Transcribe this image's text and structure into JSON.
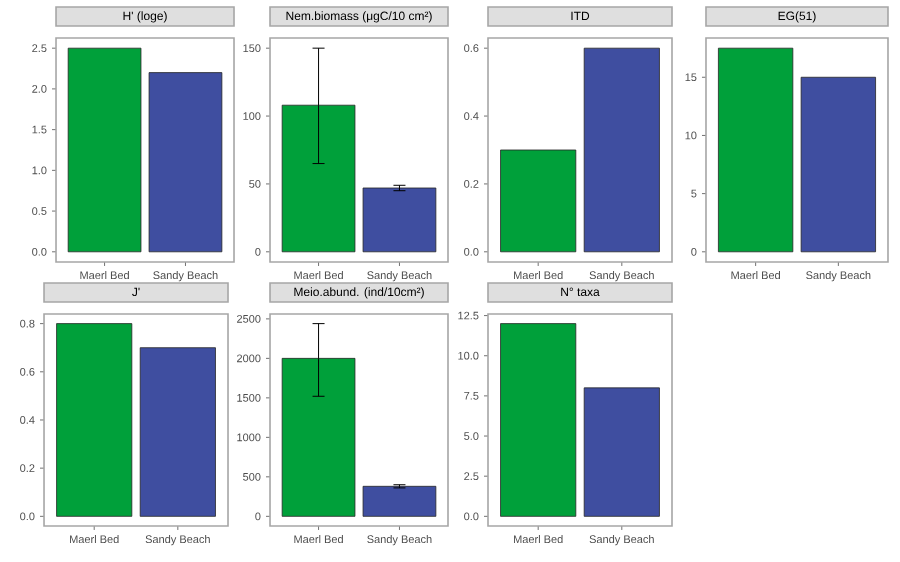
{
  "chart_data": [
    {
      "type": "bar",
      "title": "H' (loge)",
      "categories": [
        "Maerl Bed",
        "Sandy Beach"
      ],
      "values": [
        2.5,
        2.2
      ],
      "colors": [
        "#00A03A",
        "#3F4EA0"
      ],
      "ylim": [
        -0.125,
        2.625
      ],
      "yticks": [
        {
          "value": 0,
          "label": "0.0"
        },
        {
          "value": 0.5,
          "label": "0.5"
        },
        {
          "value": 1,
          "label": "1.0"
        },
        {
          "value": 1.5,
          "label": "1.5"
        },
        {
          "value": 2,
          "label": "2.0"
        },
        {
          "value": 2.5,
          "label": "2.5"
        }
      ]
    },
    {
      "type": "bar",
      "title": "Nem.biomass (μgC/10 cm²)",
      "categories": [
        "Maerl Bed",
        "Sandy Beach"
      ],
      "values": [
        108,
        47
      ],
      "colors": [
        "#00A03A",
        "#3F4EA0"
      ],
      "errors": [
        [
          65,
          150
        ],
        [
          45,
          49
        ]
      ],
      "ylim": [
        -7.5,
        157.5
      ],
      "yticks": [
        0,
        50,
        100,
        150
      ]
    },
    {
      "type": "bar",
      "title": "ITD",
      "categories": [
        "Maerl Bed",
        "Sandy Beach"
      ],
      "values": [
        0.3,
        0.6
      ],
      "colors": [
        "#00A03A",
        "#3F4EA0"
      ],
      "ylim": [
        -0.03,
        0.63
      ],
      "yticks": [
        {
          "value": 0,
          "label": "0.0"
        },
        0.2,
        0.4,
        0.6
      ]
    },
    {
      "type": "bar",
      "title": "EG(51)",
      "categories": [
        "Maerl Bed",
        "Sandy Beach"
      ],
      "values": [
        17.5,
        15
      ],
      "colors": [
        "#00A03A",
        "#3F4EA0"
      ],
      "ylim": [
        -0.875,
        18.375
      ],
      "yticks": [
        0,
        5,
        10,
        15
      ]
    },
    {
      "type": "bar",
      "title": "J'",
      "categories": [
        "Maerl Bed",
        "Sandy Beach"
      ],
      "values": [
        0.8,
        0.7
      ],
      "colors": [
        "#00A03A",
        "#3F4EA0"
      ],
      "ylim": [
        -0.04,
        0.84
      ],
      "yticks": [
        {
          "value": 0,
          "label": "0.0"
        },
        0.2,
        0.4,
        0.6,
        0.8
      ]
    },
    {
      "type": "bar",
      "title": "Meio.abund. (ind/10cm²)",
      "categories": [
        "Maerl Bed",
        "Sandy Beach"
      ],
      "values": [
        2000,
        380
      ],
      "colors": [
        "#00A03A",
        "#3F4EA0"
      ],
      "errors": [
        [
          1520,
          2440
        ],
        [
          360,
          400
        ]
      ],
      "ylim": [
        -122,
        2562
      ],
      "yticks": [
        0,
        500,
        1000,
        1500,
        2000,
        2500
      ]
    },
    {
      "type": "bar",
      "title": "N° taxa",
      "categories": [
        "Maerl Bed",
        "Sandy Beach"
      ],
      "values": [
        12,
        8
      ],
      "colors": [
        "#00A03A",
        "#3F4EA0"
      ],
      "ylim": [
        -0.6,
        12.6
      ],
      "yticks": [
        {
          "value": 0,
          "label": "0.0"
        },
        2.5,
        {
          "value": 5,
          "label": "5.0"
        },
        7.5,
        {
          "value": 10,
          "label": "10.0"
        },
        12.5
      ]
    }
  ]
}
